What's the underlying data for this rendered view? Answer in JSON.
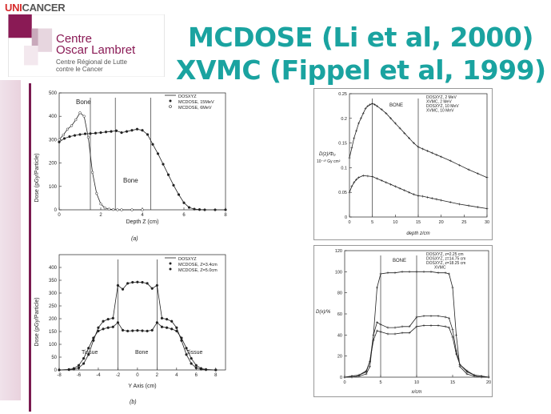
{
  "logo": {
    "unicancer_part1": "UNI",
    "unicancer_part2": "CANCER",
    "name_line1": "Centre",
    "name_line2": "Oscar Lambret",
    "subtitle_line1": "Centre Régional de Lutte",
    "subtitle_line2": "contre le Cancer",
    "colors": {
      "uni": "#d72b2b",
      "cancer": "#555555",
      "brand": "#8a1a55"
    }
  },
  "title": {
    "line1": "MCDOSE (Li et al, 2000)",
    "line2": "XVMC (Fippel et al, 1999)",
    "color": "#1aa3a0"
  },
  "chart_data": [
    {
      "type": "line",
      "id": "chart-a",
      "ylabel": "Dose (pGy/Particle)",
      "xlabel": "Depth Z (cm)",
      "caption": "(a)",
      "xlim": [
        0,
        8
      ],
      "ylim": [
        0,
        500
      ],
      "xticks": [
        "0",
        "2",
        "4",
        "6",
        "8"
      ],
      "yticks": [
        "0",
        "100",
        "200",
        "300",
        "400",
        "500"
      ],
      "legend_position": "top-right",
      "legend": [
        "DOSXYZ",
        "MCDOSE, 15MeV",
        "MCDOSE, 6MeV"
      ],
      "annotations": [
        "Bone",
        "Bone"
      ],
      "region_lines_x": [
        1.5,
        2.7,
        4.4
      ],
      "series": [
        {
          "name": "MCDOSE, 15MeV",
          "x": [
            0,
            0.25,
            0.5,
            0.75,
            1.0,
            1.25,
            1.5,
            1.75,
            2.0,
            2.25,
            2.5,
            2.75,
            3.0,
            3.25,
            3.5,
            3.75,
            4.0,
            4.25,
            4.5,
            4.75,
            5.0,
            5.25,
            5.5,
            5.75,
            6.0,
            6.25,
            6.5,
            6.75,
            7.0,
            7.5,
            8.0
          ],
          "values": [
            290,
            305,
            313,
            318,
            322,
            325,
            326,
            328,
            330,
            333,
            335,
            338,
            330,
            335,
            340,
            345,
            340,
            322,
            280,
            240,
            195,
            150,
            105,
            65,
            30,
            10,
            3,
            1,
            0,
            0,
            0
          ]
        },
        {
          "name": "MCDOSE, 6MeV",
          "x": [
            0,
            0.2,
            0.4,
            0.6,
            0.8,
            1.0,
            1.2,
            1.4,
            1.6,
            1.8,
            2.0,
            2.2,
            2.4,
            2.6,
            2.8,
            3.0,
            3.5,
            4.0
          ],
          "values": [
            300,
            320,
            345,
            360,
            385,
            415,
            400,
            310,
            160,
            70,
            25,
            8,
            3,
            1,
            0,
            0,
            0,
            0
          ]
        }
      ]
    },
    {
      "type": "line",
      "id": "chart-b",
      "ylabel": "Dose (pGy/Particle)",
      "xlabel": "Y Axis (cm)",
      "caption": "(b)",
      "xlim": [
        -8,
        9
      ],
      "ylim": [
        0,
        450
      ],
      "xticks": [
        "-8",
        "-6",
        "-4",
        "-2",
        "0",
        "2",
        "4",
        "6",
        "8"
      ],
      "yticks": [
        "0",
        "50",
        "100",
        "150",
        "200",
        "250",
        "300",
        "350",
        "400"
      ],
      "legend_position": "top-right",
      "legend": [
        "DOSXYZ",
        "MCDOSE, Z=3.4cm",
        "MCDOSE, Z=5.0cm"
      ],
      "annotations": [
        "Tissue",
        "Bone",
        "Tissue"
      ],
      "region_lines_x": [
        -2,
        2
      ],
      "series": [
        {
          "name": "MCDOSE, Z=3.4cm",
          "x": [
            -8,
            -7,
            -6.5,
            -6,
            -5.5,
            -5,
            -4.5,
            -4,
            -3.5,
            -3,
            -2.5,
            -2,
            -1.5,
            -1,
            -0.5,
            0,
            0.5,
            1,
            1.5,
            2,
            2.5,
            3,
            3.5,
            4,
            4.5,
            5,
            5.5,
            6,
            6.5,
            7,
            8
          ],
          "values": [
            0,
            1,
            3,
            8,
            25,
            60,
            115,
            165,
            190,
            198,
            202,
            330,
            315,
            338,
            342,
            343,
            342,
            338,
            318,
            330,
            202,
            198,
            190,
            165,
            115,
            60,
            25,
            8,
            3,
            1,
            0
          ]
        },
        {
          "name": "MCDOSE, Z=5.0cm",
          "x": [
            -8,
            -7,
            -6.5,
            -6,
            -5.5,
            -5,
            -4.5,
            -4,
            -3.5,
            -3,
            -2.5,
            -2,
            -1.5,
            -1,
            -0.5,
            0,
            0.5,
            1,
            1.5,
            2,
            2.5,
            3,
            3.5,
            4,
            4.5,
            5,
            5.5,
            6,
            6.5,
            7,
            8
          ],
          "values": [
            0,
            2,
            6,
            18,
            45,
            85,
            125,
            152,
            160,
            165,
            168,
            185,
            155,
            152,
            153,
            154,
            153,
            152,
            155,
            185,
            168,
            165,
            160,
            152,
            125,
            85,
            45,
            18,
            6,
            2,
            0
          ]
        }
      ]
    },
    {
      "type": "line",
      "id": "chart-c",
      "ylabel_line1": "D(z)/Φ₀",
      "ylabel_line2": "10⁻¹⁰ Gy cm²",
      "xlabel": "depth z/cm",
      "xlim": [
        0,
        30
      ],
      "ylim": [
        0,
        0.25
      ],
      "xticks": [
        "0",
        "5",
        "10",
        "15",
        "20",
        "25",
        "30"
      ],
      "yticks": [
        "0",
        "0.05",
        "0.1",
        "0.15",
        "0.2",
        "0.25"
      ],
      "legend_position": "top-right",
      "legend": [
        "DOSXYZ, 2 MeV",
        "XVMC, 2 MeV",
        "DOSXYZ, 10 MeV",
        "XVMC, 10 MeV"
      ],
      "annotations": [
        "BONE"
      ],
      "region_lines_x": [
        5,
        15
      ],
      "series": [
        {
          "name": "XVMC, 10 MeV",
          "x": [
            0,
            0.5,
            1,
            1.5,
            2,
            2.5,
            3,
            3.5,
            4,
            4.5,
            5,
            5.5,
            6,
            7,
            8,
            9,
            10,
            11,
            12,
            13,
            14,
            15,
            16,
            17,
            18,
            19,
            20,
            22,
            24,
            26,
            28,
            30
          ],
          "values": [
            0.12,
            0.14,
            0.16,
            0.175,
            0.19,
            0.2,
            0.21,
            0.22,
            0.225,
            0.228,
            0.23,
            0.228,
            0.225,
            0.218,
            0.21,
            0.2,
            0.19,
            0.18,
            0.17,
            0.16,
            0.15,
            0.142,
            0.138,
            0.134,
            0.13,
            0.126,
            0.122,
            0.114,
            0.105,
            0.096,
            0.088,
            0.08
          ]
        },
        {
          "name": "XVMC, 2 MeV",
          "x": [
            0,
            0.5,
            1,
            1.5,
            2,
            3,
            4,
            5,
            6,
            7,
            8,
            9,
            10,
            11,
            12,
            13,
            14,
            15,
            16,
            17,
            18,
            19,
            20,
            22,
            24,
            26,
            28,
            30
          ],
          "values": [
            0.05,
            0.062,
            0.07,
            0.076,
            0.08,
            0.084,
            0.083,
            0.082,
            0.078,
            0.074,
            0.07,
            0.066,
            0.062,
            0.058,
            0.054,
            0.05,
            0.046,
            0.043,
            0.042,
            0.04,
            0.038,
            0.036,
            0.034,
            0.03,
            0.026,
            0.023,
            0.02,
            0.017
          ]
        }
      ]
    },
    {
      "type": "line",
      "id": "chart-d",
      "ylabel": "D(x)/%",
      "xlabel": "x/cm",
      "xlim": [
        0,
        20
      ],
      "ylim": [
        0,
        120
      ],
      "xticks": [
        "0",
        "5",
        "10",
        "15",
        "20"
      ],
      "yticks": [
        "0",
        "20",
        "40",
        "60",
        "80",
        "100",
        "120"
      ],
      "legend_position": "top-right",
      "legend": [
        "DOSXYZ, z=2.25 cm",
        "DOSXYZ, z=14.75 cm",
        "DOSXYZ, z=18.25 cm",
        "XVMC"
      ],
      "annotations": [
        "BONE"
      ],
      "region_lines_x": [
        5,
        10
      ],
      "series": [
        {
          "name": "z=2.25 cm",
          "x": [
            0,
            1,
            2,
            3,
            3.5,
            4,
            4.5,
            5,
            6,
            7,
            8,
            9,
            10,
            11,
            12,
            13,
            14,
            14.5,
            15,
            15.5,
            16,
            17,
            18,
            19,
            20
          ],
          "values": [
            0,
            0,
            1,
            3,
            10,
            40,
            85,
            98,
            99,
            99,
            100,
            100,
            100,
            100,
            100,
            99,
            99,
            98,
            85,
            40,
            10,
            3,
            1,
            0,
            0
          ]
        },
        {
          "name": "z=14.75 cm",
          "x": [
            0,
            1,
            2,
            3,
            3.5,
            4,
            4.5,
            5,
            6,
            7,
            8,
            9,
            10,
            11,
            12,
            13,
            14,
            14.5,
            15,
            15.5,
            16,
            17,
            18,
            19,
            20
          ],
          "values": [
            0,
            1,
            2,
            5,
            15,
            40,
            52,
            50,
            47,
            47,
            48,
            48,
            57,
            58,
            58,
            58,
            57,
            56,
            45,
            25,
            12,
            5,
            2,
            1,
            0
          ]
        },
        {
          "name": "z=18.25 cm",
          "x": [
            0,
            1,
            2,
            3,
            3.5,
            4,
            4.5,
            5,
            6,
            7,
            8,
            9,
            10,
            11,
            12,
            13,
            14,
            14.5,
            15,
            15.5,
            16,
            17,
            18,
            19,
            20
          ],
          "values": [
            0,
            1,
            2,
            6,
            15,
            35,
            44,
            43,
            41,
            41,
            42,
            42,
            48,
            49,
            49,
            49,
            48,
            47,
            38,
            22,
            12,
            6,
            2,
            1,
            0
          ]
        }
      ]
    }
  ]
}
